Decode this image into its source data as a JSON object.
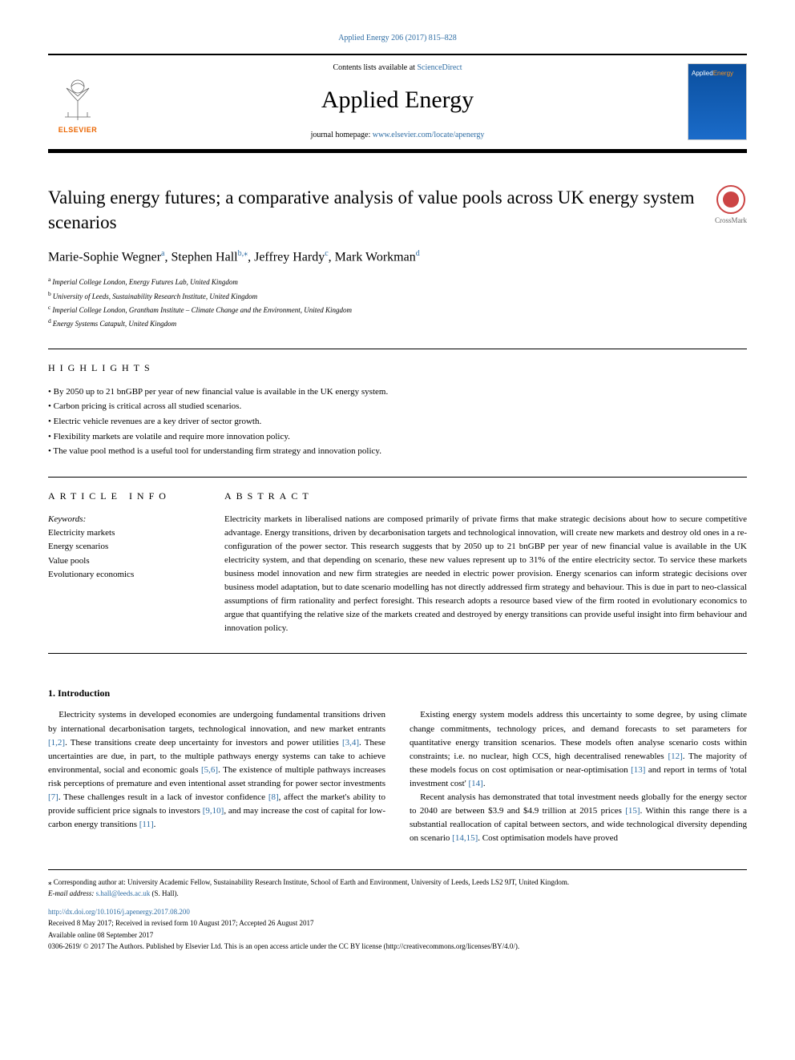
{
  "top_link": "Applied Energy 206 (2017) 815–828",
  "header": {
    "contents_prefix": "Contents lists available at ",
    "contents_link": "ScienceDirect",
    "journal": "Applied Energy",
    "homepage_prefix": "journal homepage: ",
    "homepage_url": "www.elsevier.com/locate/apenergy",
    "publisher_logo_text": "ELSEVIER",
    "cover_label_left": "Applied",
    "cover_label_right": "Energy"
  },
  "crossmark_label": "CrossMark",
  "title": "Valuing energy futures; a comparative analysis of value pools across UK energy system scenarios",
  "authors_html_parts": [
    {
      "name": "Marie-Sophie Wegner",
      "aff": "a"
    },
    {
      "name": "Stephen Hall",
      "aff": "b,⁎"
    },
    {
      "name": "Jeffrey Hardy",
      "aff": "c"
    },
    {
      "name": "Mark Workman",
      "aff": "d"
    }
  ],
  "affiliations": [
    {
      "key": "a",
      "text": "Imperial College London, Energy Futures Lab, United Kingdom"
    },
    {
      "key": "b",
      "text": "University of Leeds, Sustainability Research Institute, United Kingdom"
    },
    {
      "key": "c",
      "text": "Imperial College London, Grantham Institute – Climate Change and the Environment, United Kingdom"
    },
    {
      "key": "d",
      "text": "Energy Systems Catapult, United Kingdom"
    }
  ],
  "highlights_heading": "HIGHLIGHTS",
  "highlights": [
    "By 2050 up to 21 bnGBP per year of new financial value is available in the UK energy system.",
    "Carbon pricing is critical across all studied scenarios.",
    "Electric vehicle revenues are a key driver of sector growth.",
    "Flexibility markets are volatile and require more innovation policy.",
    "The value pool method is a useful tool for understanding firm strategy and innovation policy."
  ],
  "article_info_heading": "ARTICLE INFO",
  "abstract_heading": "ABSTRACT",
  "keywords_label": "Keywords:",
  "keywords": [
    "Electricity markets",
    "Energy scenarios",
    "Value pools",
    "Evolutionary economics"
  ],
  "abstract": "Electricity markets in liberalised nations are composed primarily of private firms that make strategic decisions about how to secure competitive advantage. Energy transitions, driven by decarbonisation targets and technological innovation, will create new markets and destroy old ones in a re-configuration of the power sector. This research suggests that by 2050 up to 21 bnGBP per year of new financial value is available in the UK electricity system, and that depending on scenario, these new values represent up to 31% of the entire electricity sector. To service these markets business model innovation and new firm strategies are needed in electric power provision. Energy scenarios can inform strategic decisions over business model adaptation, but to date scenario modelling has not directly addressed firm strategy and behaviour. This is due in part to neo-classical assumptions of firm rationality and perfect foresight. This research adopts a resource based view of the firm rooted in evolutionary economics to argue that quantifying the relative size of the markets created and destroyed by energy transitions can provide useful insight into firm behaviour and innovation policy.",
  "intro_heading": "1. Introduction",
  "intro_p1_a": "Electricity systems in developed economies are undergoing fundamental transitions driven by international decarbonisation targets, technological innovation, and new market entrants ",
  "intro_c1": "[1,2]",
  "intro_p1_b": ". These transitions create deep uncertainty for investors and power utilities ",
  "intro_c2": "[3,4]",
  "intro_p1_c": ". These uncertainties are due, in part, to the multiple pathways energy systems can take to achieve environmental, social and economic goals ",
  "intro_c3": "[5,6]",
  "intro_p1_d": ". The existence of multiple pathways increases risk perceptions of premature and even intentional asset stranding for power sector investments ",
  "intro_c4": "[7]",
  "intro_p1_e": ". These challenges result in a lack of investor confidence ",
  "intro_c5": "[8]",
  "intro_p1_f": ", affect the market's ability to provide sufficient price signals to investors ",
  "intro_c6": "[9,10]",
  "intro_p1_g": ", and may increase the cost of capital for low-carbon energy transitions ",
  "intro_c7": "[11]",
  "intro_p1_h": ".",
  "intro_p2_a": "Existing energy system models address this uncertainty to some degree, by using climate change commitments, technology prices, and demand forecasts to set parameters for quantitative energy transition scenarios. These models often analyse scenario costs within constraints; i.e. no nuclear, high CCS, high decentralised renewables ",
  "intro_c8": "[12]",
  "intro_p2_b": ". The majority of these models focus on cost optimisation or near-optimisation ",
  "intro_c9": "[13]",
  "intro_p2_c": " and report in terms of 'total investment cost' ",
  "intro_c10": "[14]",
  "intro_p2_d": ".",
  "intro_p3_a": "Recent analysis has demonstrated that total investment needs globally for the energy sector to 2040 are between $3.9 and $4.9 trillion at 2015 prices ",
  "intro_c11": "[15]",
  "intro_p3_b": ". Within this range there is a substantial reallocation of capital between sectors, and wide technological diversity depending on scenario ",
  "intro_c12": "[14,15]",
  "intro_p3_c": ". Cost optimisation models have proved",
  "footer": {
    "corr": "⁎ Corresponding author at: University Academic Fellow, Sustainability Research Institute, School of Earth and Environment, University of Leeds, Leeds LS2 9JT, United Kingdom.",
    "email_label": "E-mail address: ",
    "email": "s.hall@leeds.ac.uk",
    "email_suffix": " (S. Hall).",
    "doi": "http://dx.doi.org/10.1016/j.apenergy.2017.08.200",
    "received": "Received 8 May 2017; Received in revised form 10 August 2017; Accepted 26 August 2017",
    "available": "Available online 08 September 2017",
    "copyright": "0306-2619/ © 2017 The Authors. Published by Elsevier Ltd. This is an open access article under the CC BY license (http://creativecommons.org/licenses/BY/4.0/)."
  },
  "colors": {
    "link": "#2e6da4",
    "elsevier_orange": "#eb6500",
    "cover_blue_top": "#0b4f9e",
    "cover_blue_bottom": "#1a6bc9",
    "crossmark_red": "#c44"
  }
}
